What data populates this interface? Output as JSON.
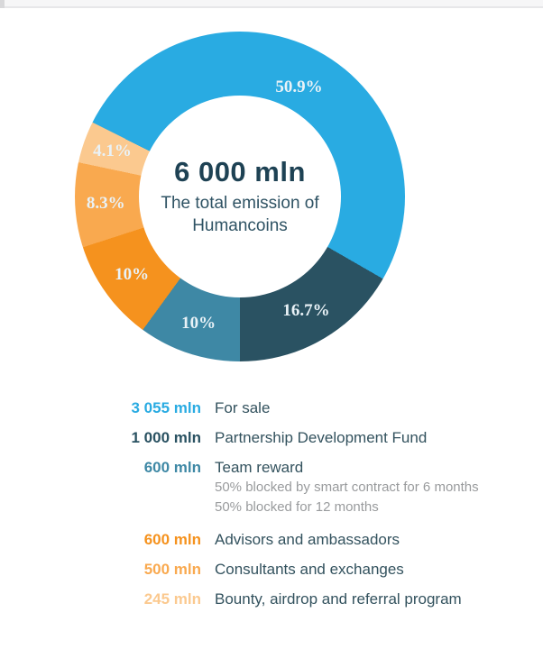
{
  "chart_data": {
    "type": "donut",
    "title": "6 000 mln",
    "subtitle": "The total emission of Humancoins",
    "start_angle_deg": 296.7,
    "total_pct": 100,
    "total_mln": 6000,
    "legend_position": "bottom",
    "percent_label_color": "#e9f2f7",
    "slices": [
      {
        "label": "For sale",
        "value_mln": 3055,
        "value_text": "3 055 mln",
        "pct": 50.9,
        "pct_label": "50.9%",
        "color": "#29ABE2"
      },
      {
        "label": "Partnership Development Fund",
        "value_mln": 1000,
        "value_text": "1 000 mln",
        "pct": 16.7,
        "pct_label": "16.7%",
        "color": "#2A5262"
      },
      {
        "label": "Team reward",
        "value_mln": 600,
        "value_text": "600 mln",
        "pct": 10,
        "pct_label": "10%",
        "color": "#3E88A5",
        "notes": [
          "50% blocked by smart contract for 6 months",
          "50% blocked for 12 months"
        ]
      },
      {
        "label": "Advisors and ambassadors",
        "value_mln": 600,
        "value_text": "600 mln",
        "pct": 10,
        "pct_label": "10%",
        "color": "#F5921E"
      },
      {
        "label": "Consultants and exchanges",
        "value_mln": 500,
        "value_text": "500 mln",
        "pct": 8.3,
        "pct_label": "8.3%",
        "color": "#F9A94F"
      },
      {
        "label": "Bounty, airdrop and referral program",
        "value_mln": 245,
        "value_text": "245 mln",
        "pct": 4.1,
        "pct_label": "4.1%",
        "color": "#FBC98F"
      }
    ]
  }
}
